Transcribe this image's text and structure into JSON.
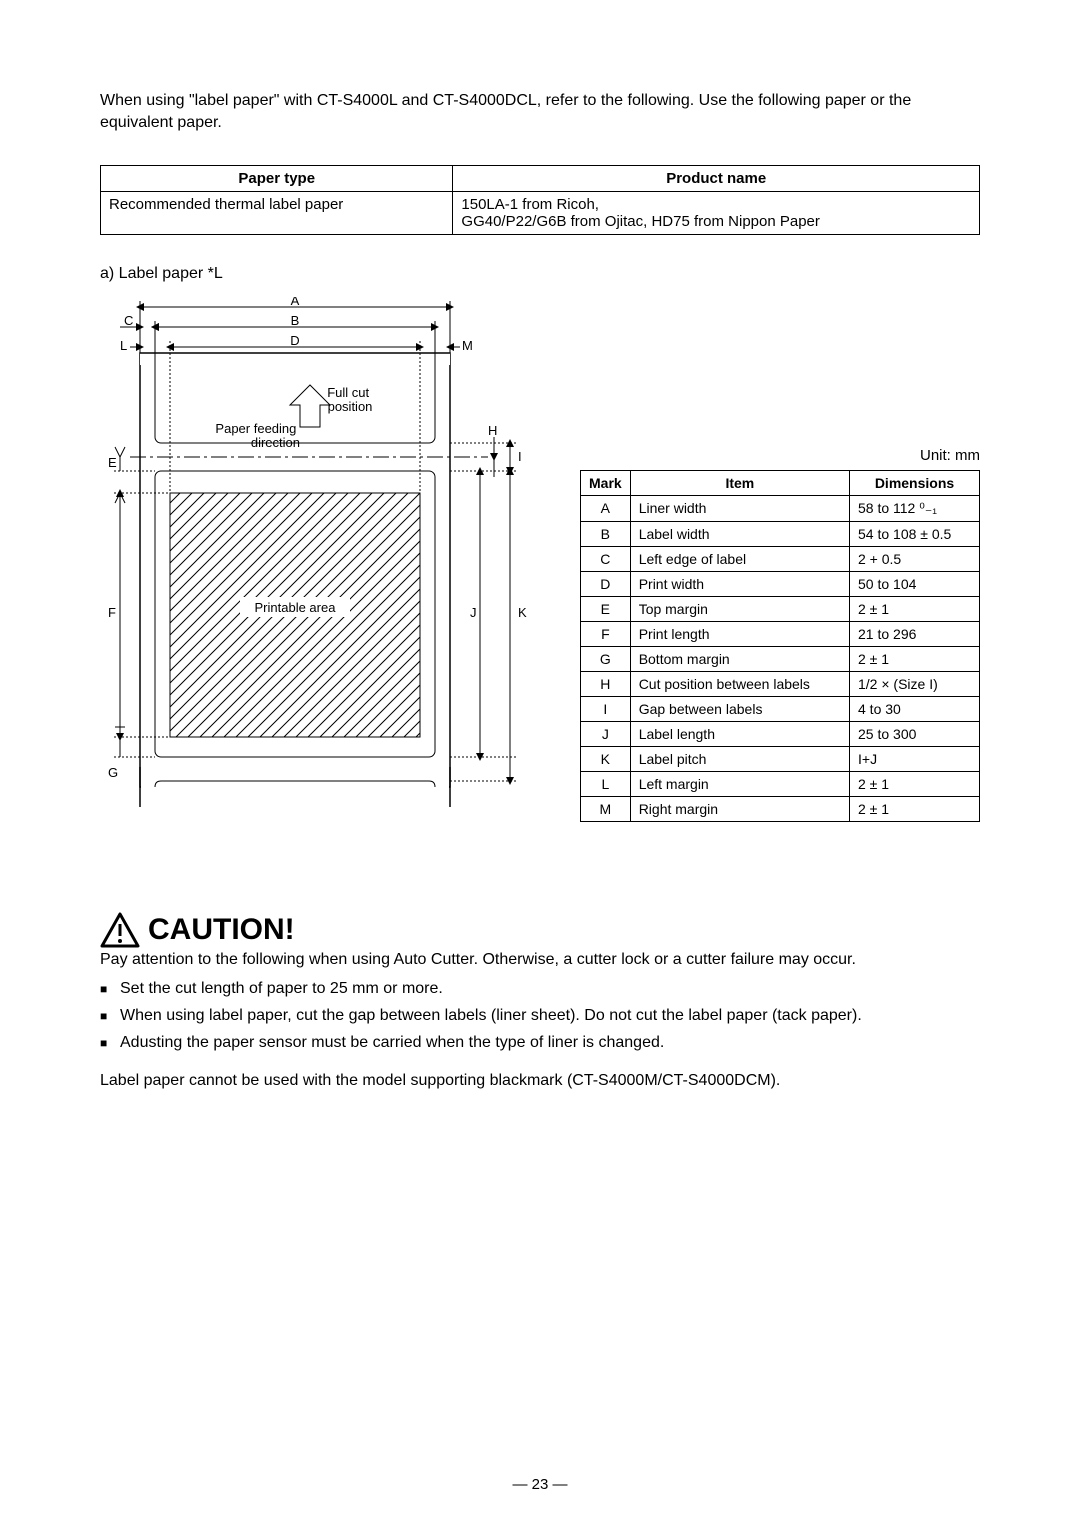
{
  "intro": "When using \"label paper\" with CT-S4000L and CT-S4000DCL, refer to the following.  Use the following paper or the equivalent paper.",
  "paperTable": {
    "headers": [
      "Paper type",
      "Product name"
    ],
    "rows": [
      [
        "Recommended thermal label paper",
        "150LA-1 from Ricoh,\nGG40/P22/G6B from Ojitac, HD75 from Nippon Paper"
      ]
    ]
  },
  "sectionLabel": "a) Label paper *L",
  "diagram": {
    "labels": {
      "A": "A",
      "B": "B",
      "C": "C",
      "D": "D",
      "E": "E",
      "F": "F",
      "G": "G",
      "H": "H",
      "I": "I",
      "J": "J",
      "K": "K",
      "L": "L",
      "M": "M"
    },
    "annotations": {
      "fullCut": "Full cut\nposition",
      "feedDir": "Paper feeding\ndirection",
      "printable": "Printable area"
    }
  },
  "unitLabel": "Unit: mm",
  "dimTable": {
    "headers": [
      "Mark",
      "Item",
      "Dimensions"
    ],
    "rows": [
      [
        "A",
        "Liner width",
        "58 to 112 ⁰₋₁"
      ],
      [
        "B",
        "Label width",
        "54 to 108 ± 0.5"
      ],
      [
        "C",
        "Left edge of label",
        "2 + 0.5"
      ],
      [
        "D",
        "Print width",
        "50 to 104"
      ],
      [
        "E",
        "Top margin",
        "2 ± 1"
      ],
      [
        "F",
        "Print length",
        "21 to 296"
      ],
      [
        "G",
        "Bottom margin",
        "2 ± 1"
      ],
      [
        "H",
        "Cut position between labels",
        "1/2 × (Size I)"
      ],
      [
        "I",
        "Gap between labels",
        "4 to 30"
      ],
      [
        "J",
        "Label length",
        "25 to 300"
      ],
      [
        "K",
        "Label pitch",
        "I+J"
      ],
      [
        "L",
        "Left margin",
        "2 ± 1"
      ],
      [
        "M",
        "Right margin",
        "2 ± 1"
      ]
    ]
  },
  "caution": {
    "title": "CAUTION!",
    "lead": "Pay attention to the following when using Auto Cutter.  Otherwise, a cutter lock or a cutter failure may occur.",
    "items": [
      "Set the cut length of paper to 25 mm or more.",
      "When using label paper, cut the gap between labels (liner sheet).  Do not cut the label paper (tack paper).",
      "Adusting the paper sensor must be carried when the type of liner is changed."
    ],
    "note": "Label paper cannot be used with the model supporting blackmark (CT-S4000M/CT-S4000DCM)."
  },
  "pageNumber": "— 23 —"
}
